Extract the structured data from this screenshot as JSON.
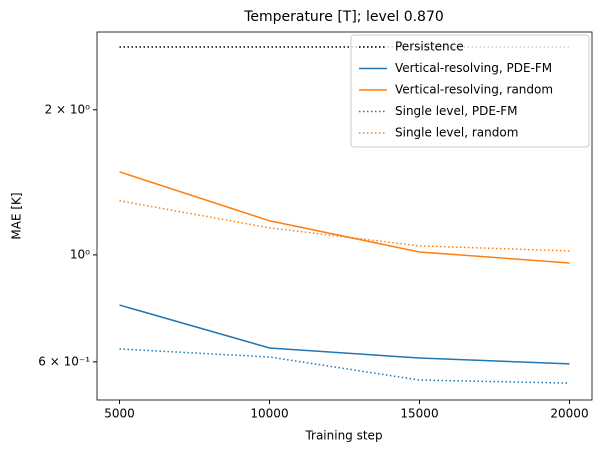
{
  "chart_data": {
    "type": "line",
    "title": "Temperature [T]; level 0.870",
    "x_label": "Training step",
    "y_label": "MAE [K]",
    "x": [
      5000,
      10000,
      15000,
      20000
    ],
    "xlim": [
      4250,
      20750
    ],
    "xticks": [
      5000,
      10000,
      15000,
      20000
    ],
    "ylim": [
      0.5,
      2.9
    ],
    "y_scale": "log",
    "yticks": [
      {
        "value": 2,
        "label": "2 × 10⁰"
      },
      {
        "value": 1,
        "label": "10⁰"
      },
      {
        "value": 0.6,
        "label": "6 × 10⁻¹"
      }
    ],
    "legend": "upper right",
    "series": [
      {
        "name": "Persistence",
        "color": "#000000",
        "linestyle": "dotted",
        "values": [
          2.7,
          2.7,
          2.7,
          2.7
        ]
      },
      {
        "name": "Vertical-resolving, PDE-FM",
        "color": "#1f77b4",
        "linestyle": "solid",
        "values": [
          0.787,
          0.641,
          0.611,
          0.594
        ]
      },
      {
        "name": "Vertical-resolving, random",
        "color": "#ff7f0e",
        "linestyle": "solid",
        "values": [
          1.487,
          1.177,
          1.014,
          0.962
        ]
      },
      {
        "name": "Single level, PDE-FM",
        "color": "#1f77b4",
        "linestyle": "dotted",
        "values": [
          0.638,
          0.614,
          0.55,
          0.542
        ]
      },
      {
        "name": "Single level, random",
        "color": "#ff7f0e",
        "linestyle": "dotted",
        "values": [
          1.295,
          1.138,
          1.044,
          1.019
        ]
      }
    ]
  }
}
